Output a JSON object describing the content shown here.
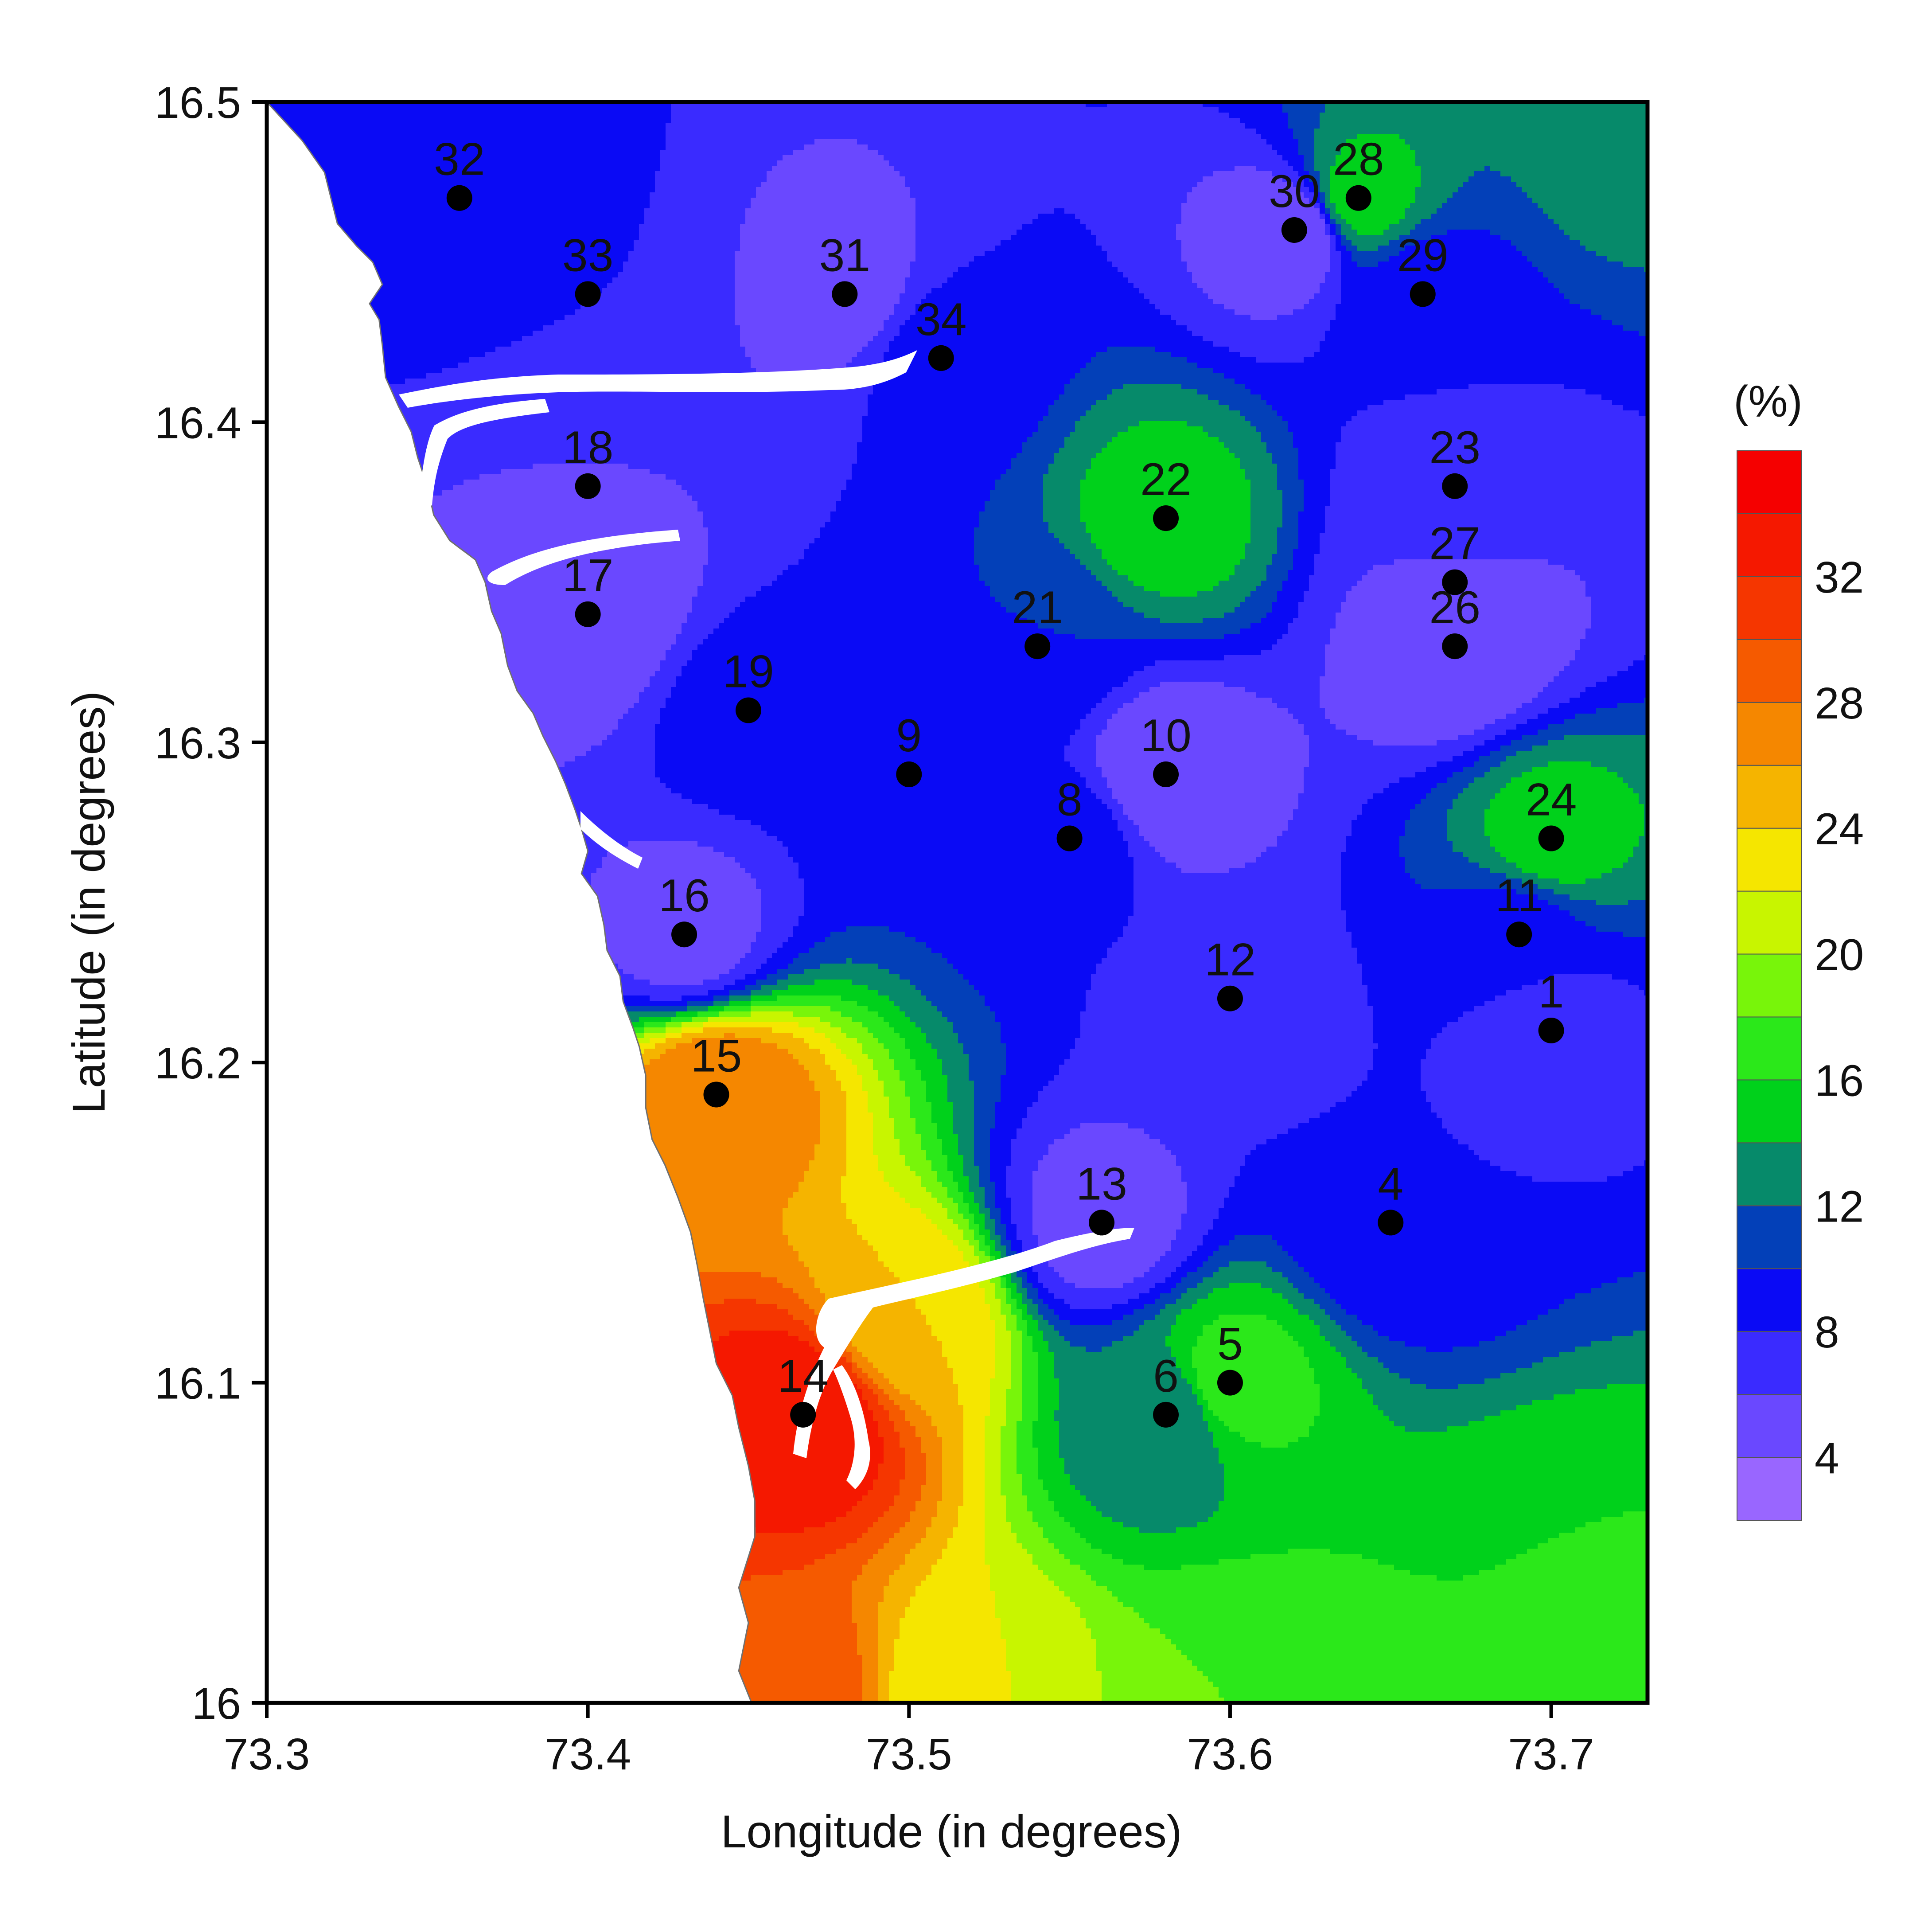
{
  "chart_data": {
    "type": "contour-map",
    "xlabel": "Longitude (in degrees)",
    "ylabel": "Latitude (in degrees)",
    "xlim": [
      73.3,
      73.73
    ],
    "ylim": [
      16.0,
      16.5
    ],
    "x_ticks": [
      "73.3",
      "73.4",
      "73.5",
      "73.6",
      "73.7"
    ],
    "x_tick_values": [
      73.3,
      73.4,
      73.5,
      73.6,
      73.7
    ],
    "y_ticks": [
      "16",
      "16.1",
      "16.2",
      "16.3",
      "16.4",
      "16.5"
    ],
    "y_tick_values": [
      16.0,
      16.1,
      16.2,
      16.3,
      16.4,
      16.5
    ],
    "colorbar": {
      "title": "(%)",
      "labels": [
        "4",
        "8",
        "12",
        "16",
        "20",
        "24",
        "28",
        "32"
      ],
      "label_values": [
        4,
        8,
        12,
        16,
        20,
        24,
        28,
        32
      ],
      "levels": [
        2,
        4,
        6,
        8,
        10,
        12,
        14,
        16,
        18,
        20,
        22,
        24,
        26,
        28,
        30,
        32,
        34,
        36
      ],
      "colors": [
        "#9966ff",
        "#6a48ff",
        "#3a2bff",
        "#0a0af5",
        "#0340b8",
        "#068a6a",
        "#00d11b",
        "#2be81a",
        "#78f50a",
        "#c8f500",
        "#f5e600",
        "#f5b400",
        "#f58700",
        "#f55a00",
        "#f53600",
        "#f51800",
        "#f50000"
      ]
    },
    "sites": [
      {
        "id": "1",
        "lon": 73.7,
        "lat": 16.21
      },
      {
        "id": "4",
        "lon": 73.65,
        "lat": 16.15
      },
      {
        "id": "5",
        "lon": 73.6,
        "lat": 16.1
      },
      {
        "id": "6",
        "lon": 73.58,
        "lat": 16.09
      },
      {
        "id": "8",
        "lon": 73.55,
        "lat": 16.27
      },
      {
        "id": "9",
        "lon": 73.5,
        "lat": 16.29
      },
      {
        "id": "10",
        "lon": 73.58,
        "lat": 16.29
      },
      {
        "id": "11",
        "lon": 73.69,
        "lat": 16.24
      },
      {
        "id": "12",
        "lon": 73.6,
        "lat": 16.22
      },
      {
        "id": "13",
        "lon": 73.56,
        "lat": 16.15
      },
      {
        "id": "14",
        "lon": 73.467,
        "lat": 16.09
      },
      {
        "id": "15",
        "lon": 73.44,
        "lat": 16.19
      },
      {
        "id": "16",
        "lon": 73.43,
        "lat": 16.24
      },
      {
        "id": "17",
        "lon": 73.4,
        "lat": 16.34
      },
      {
        "id": "18",
        "lon": 73.4,
        "lat": 16.38
      },
      {
        "id": "19",
        "lon": 73.45,
        "lat": 16.31
      },
      {
        "id": "21",
        "lon": 73.54,
        "lat": 16.33
      },
      {
        "id": "22",
        "lon": 73.58,
        "lat": 16.37
      },
      {
        "id": "23",
        "lon": 73.67,
        "lat": 16.38
      },
      {
        "id": "24",
        "lon": 73.7,
        "lat": 16.27
      },
      {
        "id": "26",
        "lon": 73.67,
        "lat": 16.33
      },
      {
        "id": "27",
        "lon": 73.67,
        "lat": 16.35
      },
      {
        "id": "28",
        "lon": 73.64,
        "lat": 16.47
      },
      {
        "id": "29",
        "lon": 73.66,
        "lat": 16.44
      },
      {
        "id": "30",
        "lon": 73.62,
        "lat": 16.46
      },
      {
        "id": "31",
        "lon": 73.48,
        "lat": 16.44
      },
      {
        "id": "32",
        "lon": 73.36,
        "lat": 16.47
      },
      {
        "id": "33",
        "lon": 73.4,
        "lat": 16.44
      },
      {
        "id": "34",
        "lon": 73.51,
        "lat": 16.42
      }
    ],
    "field_sources": [
      {
        "lon": 73.467,
        "lat": 16.09,
        "value": 34
      },
      {
        "lon": 73.44,
        "lat": 16.19,
        "value": 28
      },
      {
        "lon": 73.46,
        "lat": 16.0,
        "value": 30
      },
      {
        "lon": 73.5,
        "lat": 16.12,
        "value": 24
      },
      {
        "lon": 73.52,
        "lat": 16.0,
        "value": 22
      },
      {
        "lon": 73.6,
        "lat": 16.1,
        "value": 17
      },
      {
        "lon": 73.6,
        "lat": 16.0,
        "value": 18
      },
      {
        "lon": 73.7,
        "lat": 16.04,
        "value": 16
      },
      {
        "lon": 73.73,
        "lat": 16.0,
        "value": 17
      },
      {
        "lon": 73.58,
        "lat": 16.09,
        "value": 12
      },
      {
        "lon": 73.7,
        "lat": 16.27,
        "value": 15
      },
      {
        "lon": 73.58,
        "lat": 16.37,
        "value": 15
      },
      {
        "lon": 73.64,
        "lat": 16.47,
        "value": 15
      },
      {
        "lon": 73.72,
        "lat": 16.49,
        "value": 13
      },
      {
        "lon": 73.7,
        "lat": 16.21,
        "value": 7
      },
      {
        "lon": 73.65,
        "lat": 16.15,
        "value": 8
      },
      {
        "lon": 73.6,
        "lat": 16.22,
        "value": 7
      },
      {
        "lon": 73.56,
        "lat": 16.15,
        "value": 5
      },
      {
        "lon": 73.58,
        "lat": 16.29,
        "value": 4
      },
      {
        "lon": 73.55,
        "lat": 16.27,
        "value": 9
      },
      {
        "lon": 73.5,
        "lat": 16.29,
        "value": 9
      },
      {
        "lon": 73.45,
        "lat": 16.31,
        "value": 9
      },
      {
        "lon": 73.54,
        "lat": 16.33,
        "value": 10
      },
      {
        "lon": 73.67,
        "lat": 16.33,
        "value": 4
      },
      {
        "lon": 73.67,
        "lat": 16.35,
        "value": 6
      },
      {
        "lon": 73.67,
        "lat": 16.38,
        "value": 7
      },
      {
        "lon": 73.69,
        "lat": 16.24,
        "value": 9
      },
      {
        "lon": 73.43,
        "lat": 16.24,
        "value": 5
      },
      {
        "lon": 73.4,
        "lat": 16.34,
        "value": 4
      },
      {
        "lon": 73.4,
        "lat": 16.38,
        "value": 6
      },
      {
        "lon": 73.48,
        "lat": 16.44,
        "value": 5
      },
      {
        "lon": 73.51,
        "lat": 16.42,
        "value": 9
      },
      {
        "lon": 73.62,
        "lat": 16.46,
        "value": 4
      },
      {
        "lon": 73.66,
        "lat": 16.44,
        "value": 9
      },
      {
        "lon": 73.4,
        "lat": 16.44,
        "value": 8
      },
      {
        "lon": 73.36,
        "lat": 16.47,
        "value": 10
      }
    ],
    "coastline": [
      [
        73.3,
        16.5
      ],
      [
        73.311,
        16.488
      ],
      [
        73.318,
        16.478
      ],
      [
        73.32,
        16.47
      ],
      [
        73.322,
        16.462
      ],
      [
        73.328,
        16.455
      ],
      [
        73.333,
        16.45
      ],
      [
        73.336,
        16.443
      ],
      [
        73.332,
        16.437
      ],
      [
        73.335,
        16.432
      ],
      [
        73.336,
        16.424
      ],
      [
        73.337,
        16.414
      ],
      [
        73.341,
        16.405
      ],
      [
        73.345,
        16.397
      ],
      [
        73.347,
        16.389
      ],
      [
        73.35,
        16.38
      ],
      [
        73.352,
        16.371
      ],
      [
        73.357,
        16.363
      ],
      [
        73.365,
        16.357
      ],
      [
        73.368,
        16.35
      ],
      [
        73.37,
        16.341
      ],
      [
        73.373,
        16.334
      ],
      [
        73.375,
        16.324
      ],
      [
        73.378,
        16.316
      ],
      [
        73.383,
        16.309
      ],
      [
        73.386,
        16.302
      ],
      [
        73.39,
        16.294
      ],
      [
        73.393,
        16.287
      ],
      [
        73.396,
        16.279
      ],
      [
        73.398,
        16.273
      ],
      [
        73.4,
        16.266
      ],
      [
        73.398,
        16.259
      ],
      [
        73.403,
        16.252
      ],
      [
        73.405,
        16.243
      ],
      [
        73.406,
        16.235
      ],
      [
        73.41,
        16.227
      ],
      [
        73.411,
        16.219
      ],
      [
        73.414,
        16.211
      ],
      [
        73.416,
        16.205
      ],
      [
        73.418,
        16.196
      ],
      [
        73.418,
        16.186
      ],
      [
        73.42,
        16.176
      ],
      [
        73.424,
        16.168
      ],
      [
        73.428,
        16.158
      ],
      [
        73.432,
        16.147
      ],
      [
        73.434,
        16.137
      ],
      [
        73.436,
        16.126
      ],
      [
        73.438,
        16.116
      ],
      [
        73.44,
        16.106
      ],
      [
        73.445,
        16.096
      ],
      [
        73.447,
        16.086
      ],
      [
        73.45,
        16.074
      ],
      [
        73.452,
        16.063
      ],
      [
        73.452,
        16.052
      ],
      [
        73.447,
        16.036
      ],
      [
        73.45,
        16.025
      ],
      [
        73.447,
        16.01
      ],
      [
        73.451,
        16.0
      ]
    ]
  }
}
